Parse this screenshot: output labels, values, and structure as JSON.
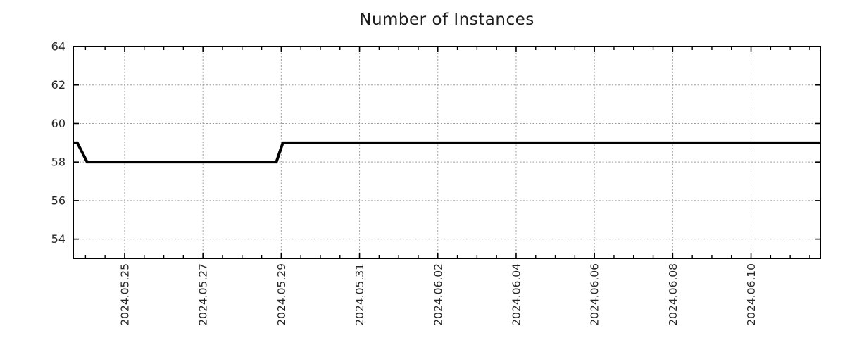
{
  "chart_data": {
    "type": "line",
    "title": "Number of Instances",
    "background_color": "#ffffff",
    "text_color": "#262626",
    "x_axis": {
      "type": "datetime",
      "min": "2024-05-23T16:30",
      "max": "2024-06-11T18:30",
      "major_ticks": [
        {
          "date": "2024-05-25",
          "label": "2024.05.25"
        },
        {
          "date": "2024-05-27",
          "label": "2024.05.27"
        },
        {
          "date": "2024-05-29",
          "label": "2024.05.29"
        },
        {
          "date": "2024-05-31",
          "label": "2024.05.31"
        },
        {
          "date": "2024-06-02",
          "label": "2024.06.02"
        },
        {
          "date": "2024-06-04",
          "label": "2024.06.04"
        },
        {
          "date": "2024-06-06",
          "label": "2024.06.06"
        },
        {
          "date": "2024-06-08",
          "label": "2024.06.08"
        },
        {
          "date": "2024-06-10",
          "label": "2024.06.10"
        }
      ],
      "minor_tick_interval_hours": 12,
      "label_rotation_deg": -90
    },
    "y_axis": {
      "min": 53,
      "max": 64,
      "ticks": [
        54,
        56,
        58,
        60,
        62,
        64
      ]
    },
    "grid": {
      "show": true,
      "style": "dotted",
      "color": "#9a9a9a"
    },
    "legend": {
      "show": false
    },
    "series": [
      {
        "name": "instances",
        "color": "#000000",
        "line_width": 4,
        "points": [
          {
            "x": "2024-05-23T16:30",
            "y": 59
          },
          {
            "x": "2024-05-23T19:00",
            "y": 59
          },
          {
            "x": "2024-05-24T01:00",
            "y": 58
          },
          {
            "x": "2024-05-28T21:00",
            "y": 58
          },
          {
            "x": "2024-05-29T01:00",
            "y": 59
          },
          {
            "x": "2024-06-11T18:30",
            "y": 59
          }
        ]
      }
    ]
  }
}
